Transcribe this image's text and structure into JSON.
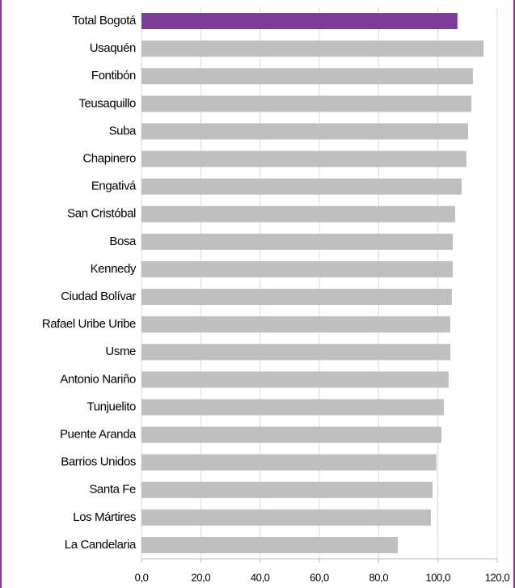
{
  "chart_data": {
    "type": "barh",
    "categories": [
      "Total Bogotá",
      "Usaquén",
      "Fontibón",
      "Teusaquillo",
      "Suba",
      "Chapinero",
      "Engativá",
      "San Cristóbal",
      "Bosa",
      "Kennedy",
      "Ciudad Bolívar",
      "Rafael Uribe Uribe",
      "Usme",
      "Antonio Nariño",
      "Tunjuelito",
      "Puente Aranda",
      "Barrios Unidos",
      "Santa Fe",
      "Los Mártires",
      "La Candelaria"
    ],
    "values": [
      106.6,
      115.4,
      111.8,
      111.3,
      110.2,
      109.6,
      108.0,
      105.8,
      105.0,
      105.0,
      104.7,
      104.2,
      104.2,
      103.6,
      102.0,
      101.2,
      99.5,
      98.2,
      97.6,
      86.5
    ],
    "colors": [
      "#7d3c98",
      "#bfbfbf",
      "#bfbfbf",
      "#bfbfbf",
      "#bfbfbf",
      "#bfbfbf",
      "#bfbfbf",
      "#bfbfbf",
      "#bfbfbf",
      "#bfbfbf",
      "#bfbfbf",
      "#bfbfbf",
      "#bfbfbf",
      "#bfbfbf",
      "#bfbfbf",
      "#bfbfbf",
      "#bfbfbf",
      "#bfbfbf",
      "#bfbfbf",
      "#bfbfbf"
    ],
    "xlim": [
      0,
      120
    ],
    "xticks": [
      {
        "value": 0,
        "label": "0,0"
      },
      {
        "value": 20,
        "label": "20,0"
      },
      {
        "value": 40,
        "label": "40,0"
      },
      {
        "value": 60,
        "label": "60,0"
      },
      {
        "value": 80,
        "label": "80,0"
      },
      {
        "value": 100,
        "label": "100,0"
      },
      {
        "value": 120,
        "label": "120,0"
      }
    ],
    "grid": true
  }
}
